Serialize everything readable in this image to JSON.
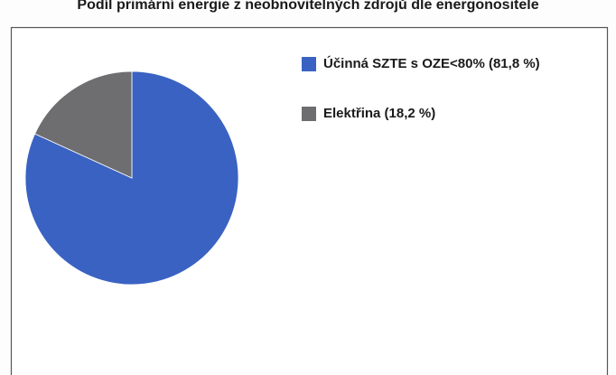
{
  "chart_data": {
    "type": "pie",
    "title": "Podíl primární energie z neobnovitelných zdrojů dle energonositele",
    "categories": [
      "Účinná SZTE s OZE<80% (81,8 %)",
      "Elektřina (18,2 %)"
    ],
    "values": [
      81.8,
      18.2
    ],
    "colors": [
      "#3a62c2",
      "#6e6e70"
    ],
    "legend": "right"
  }
}
